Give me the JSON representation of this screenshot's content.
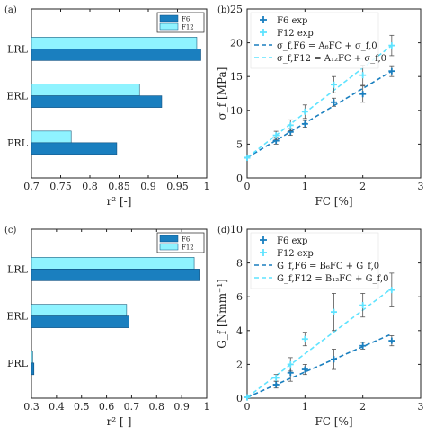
{
  "chart_data": [
    {
      "panel": "(a)",
      "type": "bar",
      "orientation": "horizontal",
      "categories": [
        "LRL",
        "ERL",
        "PRL"
      ],
      "series": [
        {
          "name": "F6",
          "values": [
            0.99,
            0.923,
            0.846
          ],
          "color": "#1a7fbf"
        },
        {
          "name": "F12",
          "values": [
            0.983,
            0.885,
            0.768
          ],
          "color": "#8ff3ff"
        }
      ],
      "xlabel": "r² [-]",
      "xlim": [
        0.7,
        1.0
      ],
      "xticks": [
        "0.7",
        "0.75",
        "0.8",
        "0.85",
        "0.9",
        "0.95",
        "1"
      ],
      "legend": "top-right"
    },
    {
      "panel": "(b)",
      "type": "scatter",
      "xlabel": "FC [%]",
      "ylabel": "σ_f [MPa]",
      "xlim": [
        0,
        3
      ],
      "ylim": [
        0,
        25
      ],
      "xticks": [
        "0",
        "1",
        "2",
        "3"
      ],
      "yticks": [
        "0",
        "5",
        "10",
        "15",
        "20",
        "25"
      ],
      "series": [
        {
          "name": "F6 exp",
          "x": [
            0,
            0.5,
            0.75,
            1,
            1.5,
            2,
            2.5
          ],
          "y": [
            3,
            5.5,
            6.8,
            8.0,
            11.2,
            12.4,
            15.8
          ],
          "err": [
            0,
            0.5,
            0.5,
            0.5,
            0.6,
            1.2,
            0.8
          ],
          "color": "#1a7fbf"
        },
        {
          "name": "F12 exp",
          "x": [
            0,
            0.5,
            0.75,
            1,
            1.5,
            2,
            2.5
          ],
          "y": [
            3,
            6.3,
            7.8,
            9.8,
            13.8,
            15.2,
            19.6
          ],
          "err": [
            0,
            0.6,
            0.8,
            1.0,
            1.2,
            1.5,
            1.5
          ],
          "color": "#5fe3ff"
        },
        {
          "name": "σ_f,F6 = A₆FC + σ_f,0",
          "type": "fit",
          "x": [
            0,
            2.5
          ],
          "y": [
            3,
            15.8
          ],
          "color": "#1a7fbf"
        },
        {
          "name": "σ_f,F12 = A₁₂FC + σ_f,0",
          "type": "fit",
          "x": [
            0,
            2.5
          ],
          "y": [
            3,
            19.6
          ],
          "color": "#5fe3ff"
        }
      ],
      "legend": "top-left"
    },
    {
      "panel": "(c)",
      "type": "bar",
      "orientation": "horizontal",
      "categories": [
        "LRL",
        "ERL",
        "PRL"
      ],
      "series": [
        {
          "name": "F6",
          "values": [
            0.97,
            0.69,
            0.31
          ],
          "color": "#1a7fbf"
        },
        {
          "name": "F12",
          "values": [
            0.95,
            0.68,
            0.305
          ],
          "color": "#8ff3ff"
        }
      ],
      "xlabel": "r² [-]",
      "xlim": [
        0.3,
        1.0
      ],
      "xticks": [
        "0.3",
        "0.4",
        "0.5",
        "0.6",
        "0.7",
        "0.8",
        "0.9",
        "1"
      ],
      "legend": "top-right"
    },
    {
      "panel": "(d)",
      "type": "scatter",
      "xlabel": "FC [%]",
      "ylabel": "G_f [Nmm⁻¹]",
      "xlim": [
        0,
        3
      ],
      "ylim": [
        0,
        10
      ],
      "xticks": [
        "0",
        "1",
        "2",
        "3"
      ],
      "yticks": [
        "0",
        "2",
        "4",
        "6",
        "8",
        "10"
      ],
      "series": [
        {
          "name": "F6 exp",
          "x": [
            0,
            0.5,
            0.75,
            1,
            1.5,
            2,
            2.5
          ],
          "y": [
            0.05,
            0.8,
            1.5,
            1.7,
            2.3,
            3.1,
            3.4
          ],
          "err": [
            0,
            0.2,
            0.5,
            0.3,
            0.6,
            0.2,
            0.3
          ],
          "color": "#1a7fbf"
        },
        {
          "name": "F12 exp",
          "x": [
            0,
            0.5,
            0.75,
            1,
            1.5,
            2,
            2.5
          ],
          "y": [
            0.05,
            1.2,
            2.0,
            3.5,
            5.1,
            5.5,
            6.4
          ],
          "err": [
            0,
            0.2,
            0.4,
            0.4,
            1.1,
            0.7,
            1.0
          ],
          "color": "#5fe3ff"
        },
        {
          "name": "G_f,F6 = B₆FC + G_f,0",
          "type": "fit",
          "x": [
            0,
            2.5
          ],
          "y": [
            0.05,
            3.8
          ],
          "color": "#1a7fbf"
        },
        {
          "name": "G_f,F12 = B₁₂FC + G_f,0",
          "type": "fit",
          "x": [
            0,
            2.5
          ],
          "y": [
            0.05,
            6.5
          ],
          "color": "#5fe3ff"
        }
      ],
      "legend": "top-left"
    }
  ]
}
